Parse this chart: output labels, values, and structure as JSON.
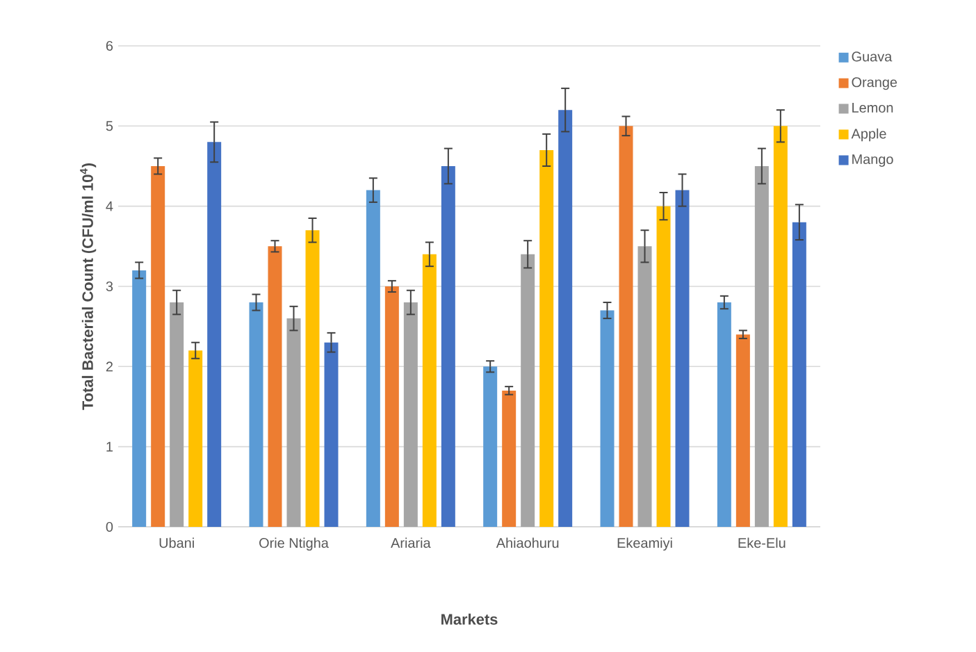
{
  "chart_data": {
    "type": "bar",
    "xlabel": "Markets",
    "ylabel": "Total Bacterial Count (CFU/ml 10$^{4}$)",
    "categories": [
      "Ubani",
      "Orie Ntigha",
      "Ariaria",
      "Ahiaohuru",
      "Ekeamiyi",
      "Eke-Elu"
    ],
    "series": [
      {
        "name": "Guava",
        "color": "#5b9bd5",
        "values": [
          3.2,
          2.8,
          4.2,
          2.0,
          2.7,
          2.8
        ],
        "errors": [
          0.1,
          0.1,
          0.15,
          0.07,
          0.1,
          0.08
        ]
      },
      {
        "name": "Orange",
        "color": "#ed7d31",
        "values": [
          4.5,
          3.5,
          3.0,
          1.7,
          5.0,
          2.4
        ],
        "errors": [
          0.1,
          0.07,
          0.07,
          0.05,
          0.12,
          0.05
        ]
      },
      {
        "name": "Lemon",
        "color": "#a5a5a5",
        "values": [
          2.8,
          2.6,
          2.8,
          3.4,
          3.5,
          4.5
        ],
        "errors": [
          0.15,
          0.15,
          0.15,
          0.17,
          0.2,
          0.22
        ]
      },
      {
        "name": "Apple",
        "color": "#ffc000",
        "values": [
          2.2,
          3.7,
          3.4,
          4.7,
          4.0,
          5.0
        ],
        "errors": [
          0.1,
          0.15,
          0.15,
          0.2,
          0.17,
          0.2
        ]
      },
      {
        "name": "Mango",
        "color": "#4472c4",
        "values": [
          4.8,
          2.3,
          4.5,
          5.2,
          4.2,
          3.8
        ],
        "errors": [
          0.25,
          0.12,
          0.22,
          0.27,
          0.2,
          0.22
        ]
      }
    ],
    "ylim": [
      0,
      6
    ],
    "yticks": [
      0,
      1,
      2,
      3,
      4,
      5,
      6
    ],
    "grid": "y",
    "legend": "right"
  }
}
